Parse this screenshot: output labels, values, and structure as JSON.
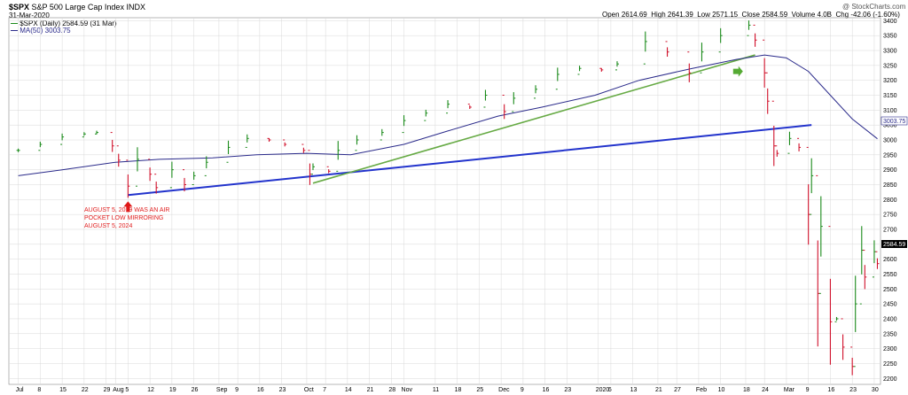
{
  "header": {
    "symbol": "$SPX",
    "name": "S&P 500 Large Cap Index",
    "exchange": "INDX",
    "date": "31-Mar-2020",
    "watermark": "@ StockCharts.com",
    "open_label": "Open",
    "open": "2614.69",
    "high_label": "High",
    "high": "2641.39",
    "low_label": "Low",
    "low": "2571.15",
    "close_label": "Close",
    "close": "2584.59",
    "volume_label": "Volume",
    "volume": "4.0B",
    "chg_label": "Chg",
    "chg": "-42.06 (-1.60%)"
  },
  "legend": {
    "series1": "$SPX (Daily) 2584.59 (31 Mar)",
    "series2": "MA(50) 3003.75"
  },
  "annotation": {
    "lines": [
      "AUGUST 5, 2019 WAS AN AIR",
      "POCKET LOW MIRRORING",
      "AUGUST 5, 2024"
    ]
  },
  "colors": {
    "up": "#1a8a1a",
    "down": "#d0102a",
    "ma": "#2a2a8a",
    "blue_trendline": "#2233cc",
    "green_trendline": "#66aa44",
    "arrow_red": "#e01818",
    "arrow_green": "#55aa33",
    "grid": "#d8d8d8"
  },
  "chart_data": {
    "type": "line",
    "title": "$SPX S&P 500 Large Cap Index INDX",
    "ylim": [
      2180,
      3410
    ],
    "yticks": [
      2200,
      2250,
      2300,
      2350,
      2400,
      2450,
      2500,
      2550,
      2600,
      2650,
      2700,
      2750,
      2800,
      2850,
      2900,
      2950,
      3000,
      3050,
      3100,
      3150,
      3200,
      3250,
      3300,
      3350,
      3400
    ],
    "current_label": "2584.59",
    "ma_label": "3003.75",
    "xticks": [
      {
        "label": "Jul",
        "date": "2019-07-01"
      },
      {
        "label": "8",
        "date": "2019-07-08"
      },
      {
        "label": "15",
        "date": "2019-07-15"
      },
      {
        "label": "22",
        "date": "2019-07-22"
      },
      {
        "label": "29",
        "date": "2019-07-29"
      },
      {
        "label": "Aug",
        "date": "2019-08-01"
      },
      {
        "label": "5",
        "date": "2019-08-05"
      },
      {
        "label": "12",
        "date": "2019-08-12"
      },
      {
        "label": "19",
        "date": "2019-08-19"
      },
      {
        "label": "26",
        "date": "2019-08-26"
      },
      {
        "label": "Sep",
        "date": "2019-09-03"
      },
      {
        "label": "9",
        "date": "2019-09-09"
      },
      {
        "label": "16",
        "date": "2019-09-16"
      },
      {
        "label": "23",
        "date": "2019-09-23"
      },
      {
        "label": "Oct",
        "date": "2019-10-01"
      },
      {
        "label": "7",
        "date": "2019-10-07"
      },
      {
        "label": "14",
        "date": "2019-10-14"
      },
      {
        "label": "21",
        "date": "2019-10-21"
      },
      {
        "label": "28",
        "date": "2019-10-28"
      },
      {
        "label": "Nov",
        "date": "2019-11-01"
      },
      {
        "label": "11",
        "date": "2019-11-11"
      },
      {
        "label": "18",
        "date": "2019-11-18"
      },
      {
        "label": "25",
        "date": "2019-11-25"
      },
      {
        "label": "Dec",
        "date": "2019-12-02"
      },
      {
        "label": "9",
        "date": "2019-12-09"
      },
      {
        "label": "16",
        "date": "2019-12-16"
      },
      {
        "label": "23",
        "date": "2019-12-23"
      },
      {
        "label": "2020",
        "date": "2020-01-02"
      },
      {
        "label": "6",
        "date": "2020-01-06"
      },
      {
        "label": "13",
        "date": "2020-01-13"
      },
      {
        "label": "21",
        "date": "2020-01-21"
      },
      {
        "label": "27",
        "date": "2020-01-27"
      },
      {
        "label": "Feb",
        "date": "2020-02-03"
      },
      {
        "label": "10",
        "date": "2020-02-10"
      },
      {
        "label": "18",
        "date": "2020-02-18"
      },
      {
        "label": "24",
        "date": "2020-02-24"
      },
      {
        "label": "Mar",
        "date": "2020-03-02"
      },
      {
        "label": "9",
        "date": "2020-03-09"
      },
      {
        "label": "16",
        "date": "2020-03-16"
      },
      {
        "label": "23",
        "date": "2020-03-23"
      },
      {
        "label": "30",
        "date": "2020-03-30"
      }
    ],
    "series": [
      {
        "name": "$SPX (Daily)",
        "kind": "ohlc_close_approx",
        "dates": [
          "2019-07-01",
          "2019-07-08",
          "2019-07-15",
          "2019-07-22",
          "2019-07-26",
          "2019-07-31",
          "2019-08-02",
          "2019-08-05",
          "2019-08-08",
          "2019-08-12",
          "2019-08-14",
          "2019-08-19",
          "2019-08-23",
          "2019-08-26",
          "2019-08-30",
          "2019-09-06",
          "2019-09-12",
          "2019-09-19",
          "2019-09-24",
          "2019-09-30",
          "2019-10-02",
          "2019-10-03",
          "2019-10-08",
          "2019-10-11",
          "2019-10-17",
          "2019-10-25",
          "2019-11-01",
          "2019-11-08",
          "2019-11-15",
          "2019-11-22",
          "2019-11-27",
          "2019-12-03",
          "2019-12-06",
          "2019-12-13",
          "2019-12-20",
          "2019-12-27",
          "2020-01-03",
          "2020-01-08",
          "2020-01-17",
          "2020-01-24",
          "2020-01-31",
          "2020-02-04",
          "2020-02-10",
          "2020-02-19",
          "2020-02-21",
          "2020-02-24",
          "2020-02-25",
          "2020-02-27",
          "2020-02-28",
          "2020-03-03",
          "2020-03-06",
          "2020-03-09",
          "2020-03-10",
          "2020-03-12",
          "2020-03-13",
          "2020-03-16",
          "2020-03-18",
          "2020-03-20",
          "2020-03-23",
          "2020-03-24",
          "2020-03-26",
          "2020-03-27",
          "2020-03-30",
          "2020-03-31"
        ],
        "values": [
          2965,
          2985,
          3010,
          3020,
          3025,
          2980,
          2932,
          2845,
          2935,
          2885,
          2840,
          2900,
          2850,
          2880,
          2925,
          2975,
          3005,
          3000,
          2985,
          2965,
          2885,
          2910,
          2895,
          2965,
          3000,
          3025,
          3065,
          3090,
          3120,
          3110,
          3150,
          3095,
          3140,
          3170,
          3220,
          3240,
          3235,
          3255,
          3330,
          3295,
          3225,
          3295,
          3350,
          3385,
          3335,
          3225,
          3130,
          2980,
          2955,
          3005,
          2975,
          2750,
          2880,
          2485,
          2710,
          2390,
          2400,
          2305,
          2240,
          2450,
          2630,
          2540,
          2625,
          2585
        ]
      },
      {
        "name": "MA(50)",
        "dates": [
          "2019-07-01",
          "2019-07-15",
          "2019-08-01",
          "2019-08-15",
          "2019-09-01",
          "2019-09-15",
          "2019-10-01",
          "2019-10-15",
          "2019-11-01",
          "2019-11-15",
          "2019-12-01",
          "2019-12-15",
          "2020-01-01",
          "2020-01-15",
          "2020-02-01",
          "2020-02-15",
          "2020-02-24",
          "2020-03-02",
          "2020-03-09",
          "2020-03-16",
          "2020-03-23",
          "2020-03-31"
        ],
        "values": [
          2880,
          2900,
          2925,
          2935,
          2940,
          2950,
          2955,
          2950,
          2985,
          3030,
          3080,
          3110,
          3150,
          3200,
          3240,
          3270,
          3285,
          3275,
          3230,
          3150,
          3070,
          3003.75
        ]
      }
    ],
    "trendlines": [
      {
        "name": "blue",
        "from": {
          "date": "2019-08-05",
          "value": 2815
        },
        "to": {
          "date": "2020-03-10",
          "value": 3050
        }
      },
      {
        "name": "green",
        "from": {
          "date": "2019-10-03",
          "value": 2855
        },
        "to": {
          "date": "2020-02-21",
          "value": 3285
        }
      }
    ],
    "markers": [
      {
        "type": "up-arrow",
        "date": "2019-08-05",
        "value": 2800
      },
      {
        "type": "right-arrow",
        "date": "2020-02-14",
        "value": 3230
      }
    ]
  }
}
